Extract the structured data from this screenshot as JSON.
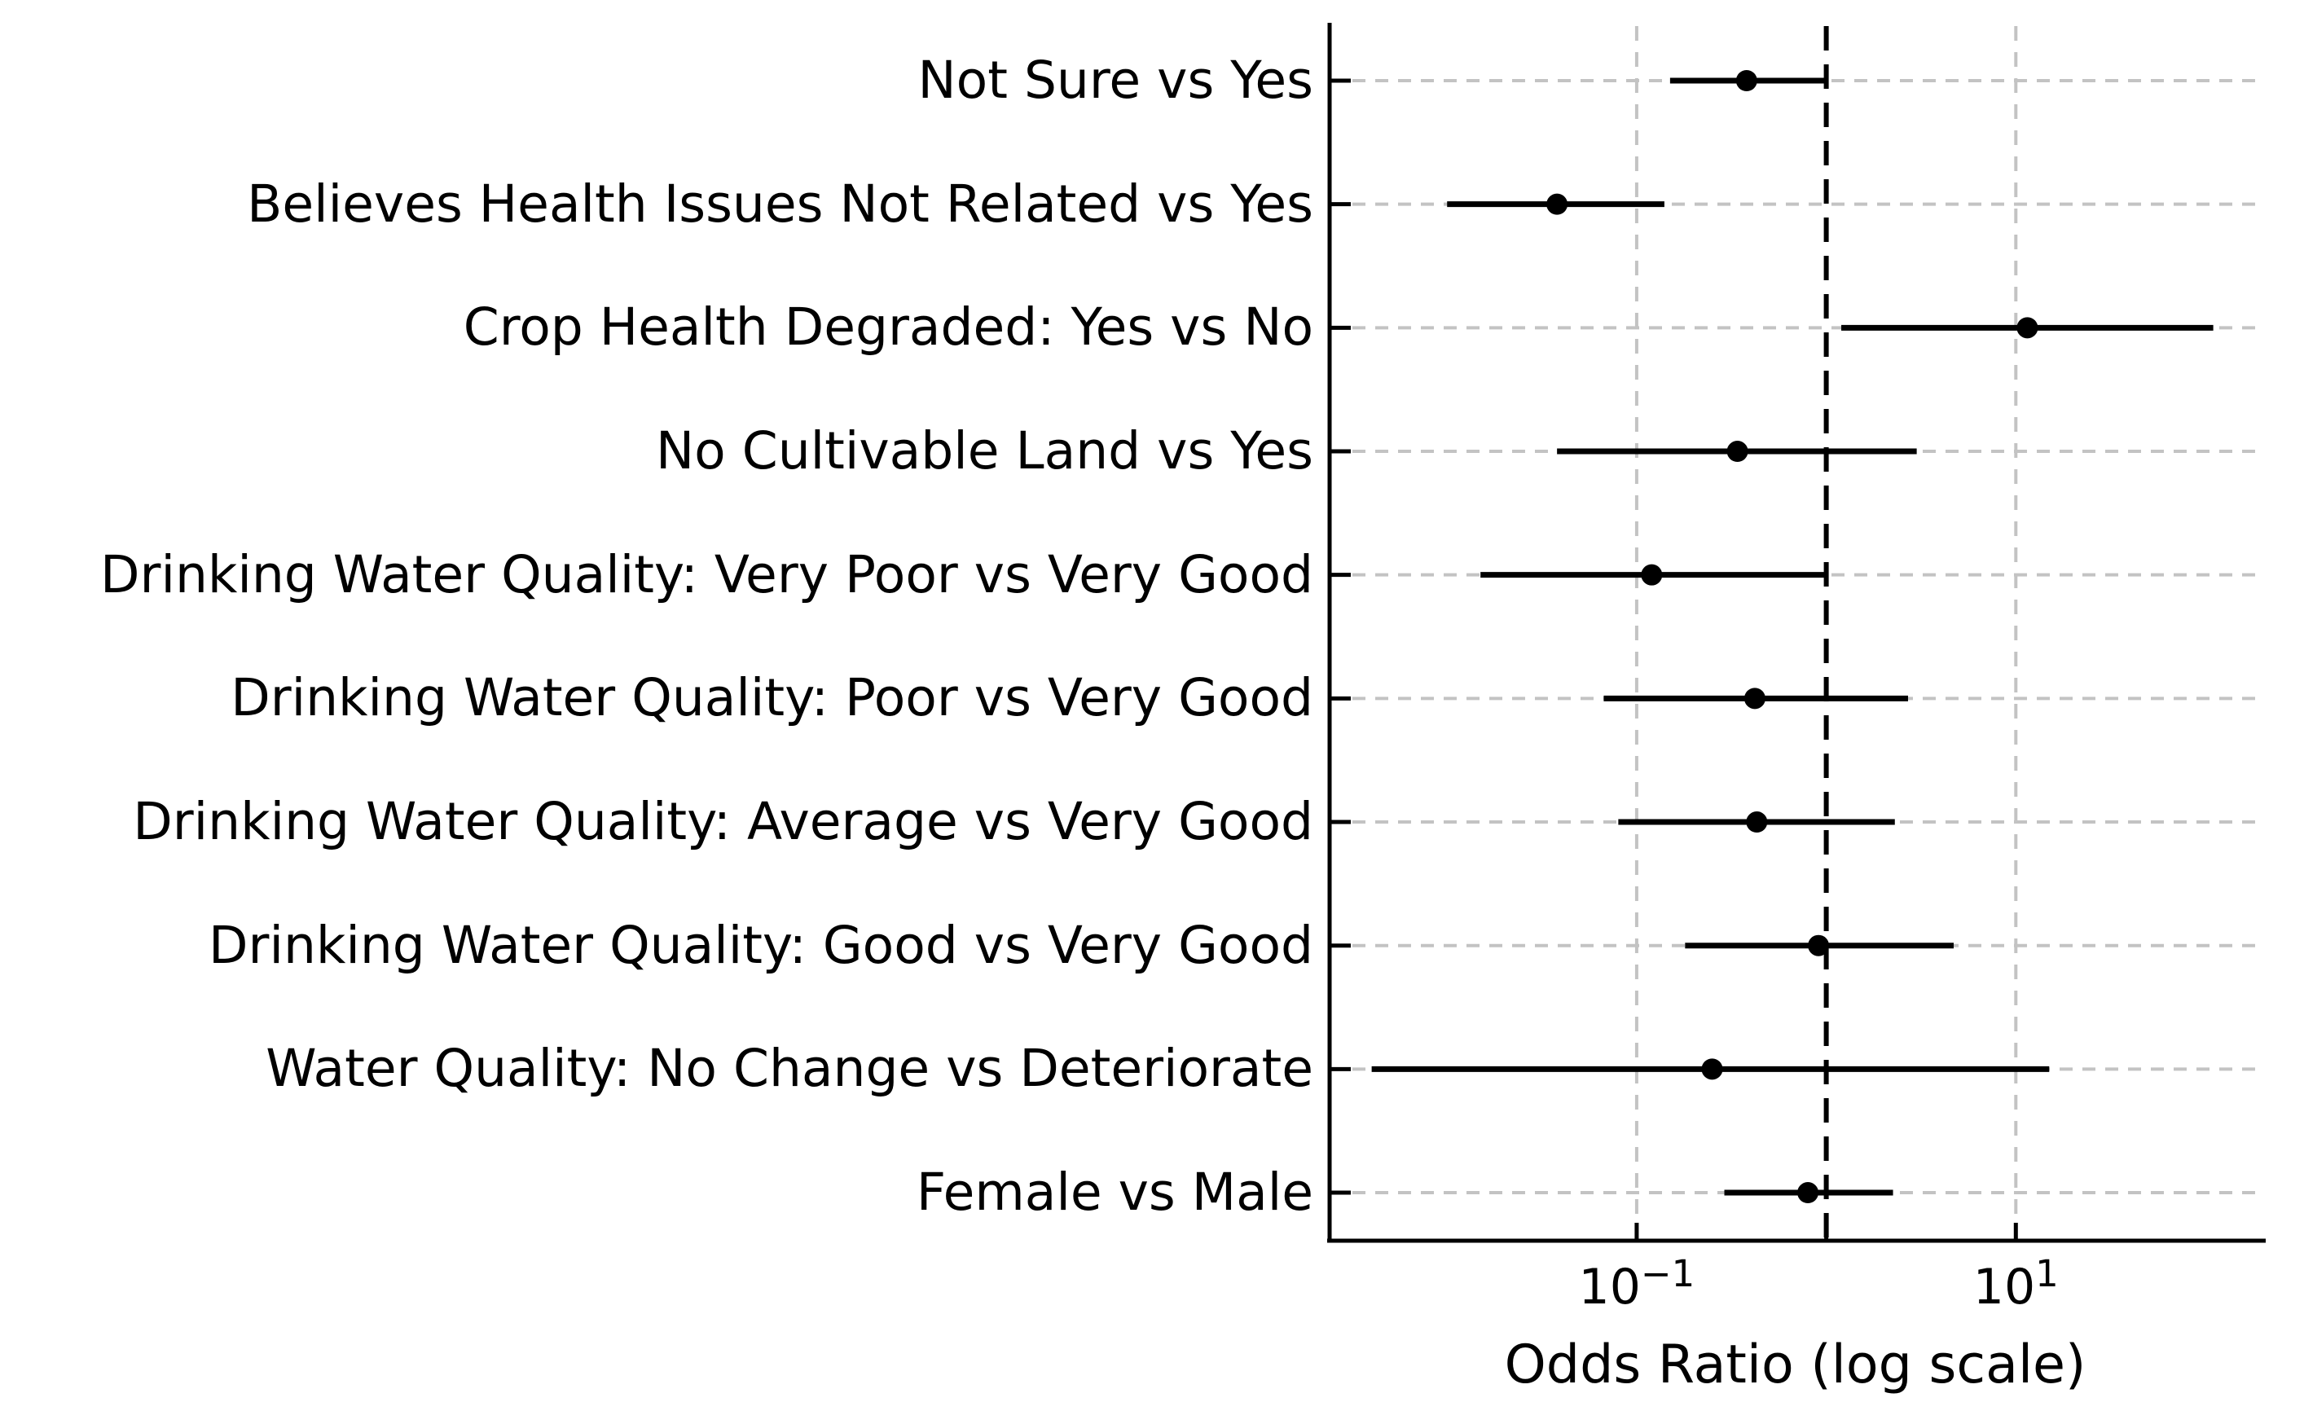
{
  "chart_data": {
    "type": "scatter",
    "subtype": "forest-plot",
    "title": "",
    "xlabel": "Odds Ratio (log scale)",
    "ylabel": "",
    "x_scale": "log",
    "xlim": [
      0.0024,
      196
    ],
    "reference_line": 1.0,
    "grid": true,
    "legend_position": "none",
    "x_ticks": [
      {
        "label_base": "10",
        "label_exp": "−1",
        "value": 0.1
      },
      {
        "label_base": "10",
        "label_exp": "1",
        "value": 10
      }
    ],
    "categories": [
      "Not Sure vs Yes",
      "Believes Health Issues Not Related vs Yes",
      "Crop Health Degraded: Yes vs No",
      "No Cultivable Land vs Yes",
      "Drinking Water Quality: Very Poor vs Very Good",
      "Drinking Water Quality: Poor vs Very Good",
      "Drinking Water Quality: Average vs Very Good",
      "Drinking Water Quality: Good vs Very Good",
      "Water Quality: No Change vs Deteriorate",
      "Female vs Male"
    ],
    "series": [
      {
        "name": "Odds Ratio",
        "values": [
          0.38,
          0.038,
          11.5,
          0.34,
          0.12,
          0.42,
          0.43,
          0.91,
          0.25,
          0.8
        ],
        "ci_low": [
          0.15,
          0.01,
          1.2,
          0.038,
          0.015,
          0.067,
          0.08,
          0.18,
          0.004,
          0.29
        ],
        "ci_high": [
          1.0,
          0.14,
          110,
          3.0,
          1.0,
          2.7,
          2.3,
          4.7,
          15.0,
          2.25
        ]
      }
    ],
    "colors": {
      "marker": "#000000",
      "error_bar": "#000000",
      "reference_line": "#000000",
      "grid": "#c3c3c3",
      "axis": "#000000",
      "text": "#000000",
      "background": "#ffffff"
    }
  }
}
